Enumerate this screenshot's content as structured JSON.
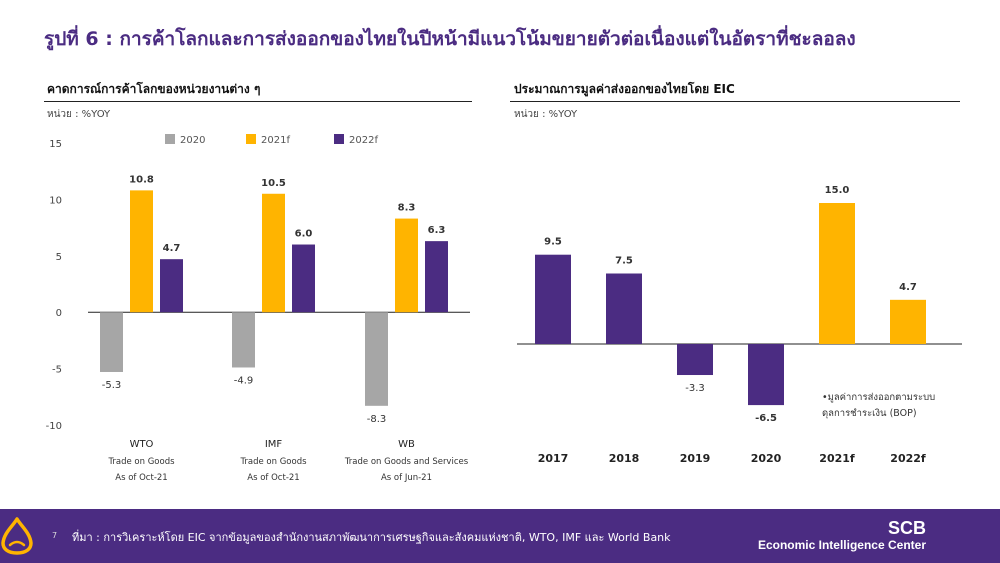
{
  "title": "รูปที่ 6 : การค้าโลกและการส่งออกของไทยในปีหน้ามีแนวโน้มขยายตัวต่อเนื่องแต่ในอัตราที่ชะลอลง",
  "left_panel": {
    "title": "คาดการณ์การค้าโลกของหน่วยงานต่าง ๆ",
    "unit": "หน่วย : %YOY"
  },
  "right_panel": {
    "title": "ประมาณการมูลค่าส่งออกของไทยโดย EIC",
    "unit": "หน่วย : %YOY",
    "note_line1": "•มูลค่าการส่งออกตามระบบ",
    "note_line2": "ดุลการชำระเงิน (BOP)"
  },
  "colors": {
    "c2020": "#a6a6a6",
    "c2021f": "#ffb400",
    "c2022f": "#4b2c82",
    "accent": "#4b2c82"
  },
  "chart_data": [
    {
      "type": "bar",
      "categories": [
        "WTO",
        "IMF",
        "WB"
      ],
      "category_sublabels": [
        [
          "Trade on Goods",
          "As of Oct-21"
        ],
        [
          "Trade on Goods",
          "As of Oct-21"
        ],
        [
          "Trade on Goods and Services",
          "As of Jun-21"
        ]
      ],
      "series": [
        {
          "name": "2020",
          "values": [
            -5.3,
            -4.9,
            -8.3
          ]
        },
        {
          "name": "2021f",
          "values": [
            10.8,
            10.5,
            8.3
          ]
        },
        {
          "name": "2022f",
          "values": [
            4.7,
            6.0,
            6.3
          ]
        }
      ],
      "data_labels": [
        [
          "-5.3",
          "-4.9",
          "-8.3"
        ],
        [
          "10.8",
          "10.5",
          "8.3"
        ],
        [
          "4.7",
          "6.0",
          "6.3"
        ]
      ],
      "yticks": [
        "15",
        "10",
        "5",
        "0",
        "-5",
        "-10"
      ],
      "ylim": [
        -10,
        15
      ],
      "legend": "top"
    },
    {
      "type": "bar",
      "categories": [
        "2017",
        "2018",
        "2019",
        "2020",
        "2021f",
        "2022f"
      ],
      "values": [
        9.5,
        7.5,
        -3.3,
        -6.5,
        15.0,
        4.7
      ],
      "data_labels": [
        "9.5",
        "7.5",
        "-3.3",
        "-6.5",
        "15.0",
        "4.7"
      ],
      "bar_colors": [
        "#4b2c82",
        "#4b2c82",
        "#4b2c82",
        "#4b2c82",
        "#ffb400",
        "#ffb400"
      ],
      "ylim": [
        -10,
        20
      ]
    }
  ],
  "footer": {
    "page": "7",
    "source": "ที่มา : การวิเคราะห์โดย EIC จากข้อมูลของสำนักงานสภาพัฒนาการเศรษฐกิจและสังคมแห่งชาติ, WTO, IMF และ World Bank",
    "brand": "SCB",
    "brand_sub": "Economic Intelligence Center"
  }
}
